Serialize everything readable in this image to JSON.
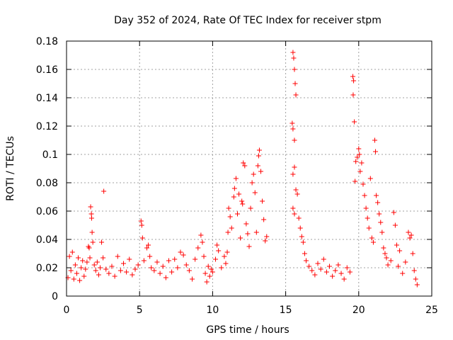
{
  "chart_data": {
    "type": "scatter",
    "title": "Day 352 of 2024, Rate Of TEC Index for receiver stpm",
    "xlabel": "GPS time / hours",
    "ylabel": "ROTI / TECUs",
    "xlim": [
      0,
      25
    ],
    "ylim": [
      0,
      0.18
    ],
    "x_ticks": [
      0,
      5,
      10,
      15,
      20,
      25
    ],
    "y_ticks": [
      0,
      0.02,
      0.04,
      0.06,
      0.08,
      0.1,
      0.12,
      0.14,
      0.16,
      0.18
    ],
    "x_tick_labels": [
      "0",
      "5",
      "10",
      "15",
      "20",
      "25"
    ],
    "y_tick_labels": [
      "0",
      "0.02",
      "0.04",
      "0.06",
      "0.08",
      "0.1",
      "0.12",
      "0.14",
      "0.16",
      "0.18"
    ],
    "grid": true,
    "marker": "+",
    "marker_color": "#ff0000",
    "series": [
      {
        "name": "ROTI",
        "points": [
          [
            0.1,
            0.013
          ],
          [
            0.2,
            0.028
          ],
          [
            0.3,
            0.018
          ],
          [
            0.4,
            0.031
          ],
          [
            0.5,
            0.012
          ],
          [
            0.6,
            0.022
          ],
          [
            0.7,
            0.016
          ],
          [
            0.8,
            0.027
          ],
          [
            0.9,
            0.011
          ],
          [
            1.0,
            0.02
          ],
          [
            1.1,
            0.025
          ],
          [
            1.2,
            0.014
          ],
          [
            1.3,
            0.019
          ],
          [
            1.4,
            0.024
          ],
          [
            1.5,
            0.035
          ],
          [
            1.55,
            0.034
          ],
          [
            1.6,
            0.027
          ],
          [
            1.65,
            0.063
          ],
          [
            1.7,
            0.058
          ],
          [
            1.72,
            0.055
          ],
          [
            1.75,
            0.045
          ],
          [
            1.8,
            0.038
          ],
          [
            1.9,
            0.022
          ],
          [
            2.0,
            0.018
          ],
          [
            2.1,
            0.024
          ],
          [
            2.2,
            0.015
          ],
          [
            2.3,
            0.02
          ],
          [
            2.4,
            0.038
          ],
          [
            2.5,
            0.027
          ],
          [
            2.55,
            0.074
          ],
          [
            2.7,
            0.019
          ],
          [
            2.9,
            0.016
          ],
          [
            3.1,
            0.021
          ],
          [
            3.3,
            0.014
          ],
          [
            3.5,
            0.028
          ],
          [
            3.7,
            0.018
          ],
          [
            3.9,
            0.023
          ],
          [
            4.1,
            0.017
          ],
          [
            4.3,
            0.026
          ],
          [
            4.5,
            0.015
          ],
          [
            4.7,
            0.019
          ],
          [
            4.9,
            0.022
          ],
          [
            5.1,
            0.053
          ],
          [
            5.15,
            0.05
          ],
          [
            5.2,
            0.041
          ],
          [
            5.3,
            0.025
          ],
          [
            5.5,
            0.034
          ],
          [
            5.6,
            0.036
          ],
          [
            5.7,
            0.028
          ],
          [
            5.8,
            0.02
          ],
          [
            6.0,
            0.018
          ],
          [
            6.2,
            0.024
          ],
          [
            6.4,
            0.016
          ],
          [
            6.6,
            0.021
          ],
          [
            6.8,
            0.013
          ],
          [
            7.0,
            0.025
          ],
          [
            7.2,
            0.017
          ],
          [
            7.4,
            0.026
          ],
          [
            7.6,
            0.02
          ],
          [
            7.8,
            0.031
          ],
          [
            8.0,
            0.029
          ],
          [
            8.2,
            0.022
          ],
          [
            8.4,
            0.018
          ],
          [
            8.6,
            0.012
          ],
          [
            8.8,
            0.026
          ],
          [
            9.0,
            0.034
          ],
          [
            9.2,
            0.043
          ],
          [
            9.3,
            0.038
          ],
          [
            9.4,
            0.028
          ],
          [
            9.5,
            0.016
          ],
          [
            9.6,
            0.01
          ],
          [
            9.7,
            0.021
          ],
          [
            9.8,
            0.014
          ],
          [
            9.9,
            0.019
          ],
          [
            10.0,
            0.017
          ],
          [
            10.2,
            0.026
          ],
          [
            10.3,
            0.036
          ],
          [
            10.4,
            0.032
          ],
          [
            10.6,
            0.02
          ],
          [
            10.8,
            0.028
          ],
          [
            10.9,
            0.023
          ],
          [
            11.0,
            0.031
          ],
          [
            11.05,
            0.045
          ],
          [
            11.1,
            0.062
          ],
          [
            11.2,
            0.056
          ],
          [
            11.3,
            0.048
          ],
          [
            11.45,
            0.07
          ],
          [
            11.5,
            0.076
          ],
          [
            11.6,
            0.083
          ],
          [
            11.7,
            0.058
          ],
          [
            11.8,
            0.072
          ],
          [
            11.9,
            0.041
          ],
          [
            12.0,
            0.067
          ],
          [
            12.05,
            0.065
          ],
          [
            12.1,
            0.094
          ],
          [
            12.2,
            0.092
          ],
          [
            12.3,
            0.051
          ],
          [
            12.4,
            0.044
          ],
          [
            12.5,
            0.035
          ],
          [
            12.6,
            0.062
          ],
          [
            12.7,
            0.08
          ],
          [
            12.8,
            0.086
          ],
          [
            12.9,
            0.073
          ],
          [
            13.0,
            0.045
          ],
          [
            13.1,
            0.092
          ],
          [
            13.15,
            0.099
          ],
          [
            13.2,
            0.103
          ],
          [
            13.3,
            0.088
          ],
          [
            13.4,
            0.067
          ],
          [
            13.5,
            0.054
          ],
          [
            13.6,
            0.039
          ],
          [
            13.7,
            0.042
          ],
          [
            15.5,
            0.172
          ],
          [
            15.55,
            0.168
          ],
          [
            15.6,
            0.16
          ],
          [
            15.65,
            0.15
          ],
          [
            15.7,
            0.142
          ],
          [
            15.45,
            0.122
          ],
          [
            15.5,
            0.118
          ],
          [
            15.6,
            0.11
          ],
          [
            15.5,
            0.086
          ],
          [
            15.6,
            0.091
          ],
          [
            15.7,
            0.075
          ],
          [
            15.8,
            0.072
          ],
          [
            15.5,
            0.062
          ],
          [
            15.6,
            0.058
          ],
          [
            15.9,
            0.055
          ],
          [
            16.0,
            0.048
          ],
          [
            16.1,
            0.042
          ],
          [
            16.2,
            0.038
          ],
          [
            16.3,
            0.03
          ],
          [
            16.4,
            0.025
          ],
          [
            16.6,
            0.021
          ],
          [
            16.8,
            0.018
          ],
          [
            17.0,
            0.015
          ],
          [
            17.2,
            0.023
          ],
          [
            17.4,
            0.019
          ],
          [
            17.6,
            0.026
          ],
          [
            17.8,
            0.017
          ],
          [
            18.0,
            0.021
          ],
          [
            18.2,
            0.014
          ],
          [
            18.4,
            0.018
          ],
          [
            18.6,
            0.022
          ],
          [
            18.8,
            0.016
          ],
          [
            19.0,
            0.012
          ],
          [
            19.2,
            0.02
          ],
          [
            19.4,
            0.017
          ],
          [
            19.6,
            0.155
          ],
          [
            19.65,
            0.152
          ],
          [
            19.62,
            0.142
          ],
          [
            19.7,
            0.123
          ],
          [
            19.75,
            0.081
          ],
          [
            19.8,
            0.095
          ],
          [
            19.9,
            0.098
          ],
          [
            20.0,
            0.104
          ],
          [
            20.05,
            0.1
          ],
          [
            20.1,
            0.088
          ],
          [
            20.2,
            0.094
          ],
          [
            20.3,
            0.079
          ],
          [
            20.4,
            0.071
          ],
          [
            20.5,
            0.062
          ],
          [
            20.6,
            0.055
          ],
          [
            20.7,
            0.048
          ],
          [
            20.8,
            0.083
          ],
          [
            20.9,
            0.041
          ],
          [
            21.0,
            0.038
          ],
          [
            21.1,
            0.11
          ],
          [
            21.15,
            0.102
          ],
          [
            21.2,
            0.071
          ],
          [
            21.3,
            0.066
          ],
          [
            21.4,
            0.058
          ],
          [
            21.5,
            0.052
          ],
          [
            21.6,
            0.045
          ],
          [
            21.7,
            0.034
          ],
          [
            21.8,
            0.03
          ],
          [
            21.9,
            0.027
          ],
          [
            22.0,
            0.022
          ],
          [
            22.2,
            0.025
          ],
          [
            22.4,
            0.059
          ],
          [
            22.5,
            0.05
          ],
          [
            22.6,
            0.036
          ],
          [
            22.7,
            0.021
          ],
          [
            22.8,
            0.032
          ],
          [
            23.0,
            0.016
          ],
          [
            23.2,
            0.024
          ],
          [
            23.4,
            0.045
          ],
          [
            23.5,
            0.041
          ],
          [
            23.6,
            0.043
          ],
          [
            23.7,
            0.03
          ],
          [
            23.8,
            0.018
          ],
          [
            23.9,
            0.012
          ],
          [
            24.0,
            0.008
          ]
        ]
      }
    ]
  }
}
